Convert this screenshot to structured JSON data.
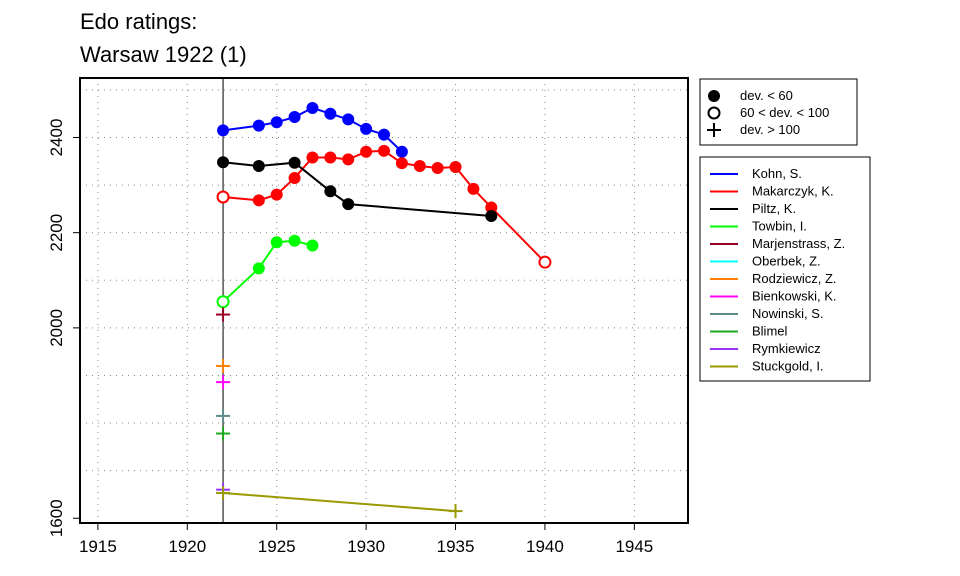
{
  "chart_data": {
    "type": "line",
    "title": "Edo ratings:",
    "subtitle": "Warsaw 1922 (1)",
    "xlabel": "",
    "ylabel": "",
    "xlim": [
      1914,
      1948
    ],
    "ylim": [
      1590,
      2525
    ],
    "xticks": [
      1915,
      1920,
      1925,
      1930,
      1935,
      1940,
      1945
    ],
    "yticks": [
      1600,
      2000,
      2200,
      2400
    ],
    "grid_x": [
      1915,
      1920,
      1925,
      1930,
      1935,
      1940,
      1945
    ],
    "grid_y": [
      1700,
      1800,
      1900,
      2000,
      2100,
      2200,
      2300,
      2400,
      2500
    ],
    "grid": true,
    "marker_line_year": 1922,
    "legend_placement": "right",
    "marker_legend": [
      {
        "symbol": "filled",
        "label": "dev. < 60"
      },
      {
        "symbol": "open",
        "label": "60 < dev. < 100"
      },
      {
        "symbol": "plus",
        "label": "dev. > 100"
      }
    ],
    "series": [
      {
        "name": "Kohn, S.",
        "color": "#0000ff",
        "points": [
          {
            "x": 1922,
            "y": 2415,
            "m": "filled"
          },
          {
            "x": 1924,
            "y": 2425,
            "m": "filled"
          },
          {
            "x": 1925,
            "y": 2432,
            "m": "filled"
          },
          {
            "x": 1926,
            "y": 2443,
            "m": "filled"
          },
          {
            "x": 1927,
            "y": 2462,
            "m": "filled"
          },
          {
            "x": 1928,
            "y": 2450,
            "m": "filled"
          },
          {
            "x": 1929,
            "y": 2438,
            "m": "filled"
          },
          {
            "x": 1930,
            "y": 2418,
            "m": "filled"
          },
          {
            "x": 1931,
            "y": 2406,
            "m": "filled"
          },
          {
            "x": 1932,
            "y": 2370,
            "m": "filled"
          }
        ]
      },
      {
        "name": "Makarczyk, K.",
        "color": "#ff0000",
        "points": [
          {
            "x": 1922,
            "y": 2275,
            "m": "open"
          },
          {
            "x": 1924,
            "y": 2268,
            "m": "filled"
          },
          {
            "x": 1925,
            "y": 2280,
            "m": "filled"
          },
          {
            "x": 1926,
            "y": 2315,
            "m": "filled"
          },
          {
            "x": 1927,
            "y": 2358,
            "m": "filled"
          },
          {
            "x": 1928,
            "y": 2358,
            "m": "filled"
          },
          {
            "x": 1929,
            "y": 2354,
            "m": "filled"
          },
          {
            "x": 1930,
            "y": 2370,
            "m": "filled"
          },
          {
            "x": 1931,
            "y": 2372,
            "m": "filled"
          },
          {
            "x": 1932,
            "y": 2346,
            "m": "filled"
          },
          {
            "x": 1933,
            "y": 2340,
            "m": "filled"
          },
          {
            "x": 1934,
            "y": 2336,
            "m": "filled"
          },
          {
            "x": 1935,
            "y": 2338,
            "m": "filled"
          },
          {
            "x": 1936,
            "y": 2292,
            "m": "filled"
          },
          {
            "x": 1937,
            "y": 2253,
            "m": "filled"
          },
          {
            "x": 1940,
            "y": 2138,
            "m": "open"
          }
        ]
      },
      {
        "name": "Piltz, K.",
        "color": "#000000",
        "points": [
          {
            "x": 1922,
            "y": 2348,
            "m": "filled"
          },
          {
            "x": 1924,
            "y": 2340,
            "m": "filled"
          },
          {
            "x": 1926,
            "y": 2347,
            "m": "filled"
          },
          {
            "x": 1928,
            "y": 2287,
            "m": "filled"
          },
          {
            "x": 1929,
            "y": 2260,
            "m": "filled"
          },
          {
            "x": 1937,
            "y": 2235,
            "m": "filled"
          }
        ]
      },
      {
        "name": "Towbin, I.",
        "color": "#00ff00",
        "points": [
          {
            "x": 1922,
            "y": 2055,
            "m": "open"
          },
          {
            "x": 1924,
            "y": 2125,
            "m": "filled"
          },
          {
            "x": 1925,
            "y": 2180,
            "m": "filled"
          },
          {
            "x": 1926,
            "y": 2183,
            "m": "filled"
          },
          {
            "x": 1927,
            "y": 2173,
            "m": "filled"
          }
        ]
      },
      {
        "name": "Marjenstrass, Z.",
        "color": "#990022",
        "points": [
          {
            "x": 1922,
            "y": 2028,
            "m": "plus"
          }
        ]
      },
      {
        "name": "Oberbek, Z.",
        "color": "#00ffff",
        "points": []
      },
      {
        "name": "Rodziewicz, Z.",
        "color": "#ff7f00",
        "points": [
          {
            "x": 1922,
            "y": 1920,
            "m": "plus"
          }
        ]
      },
      {
        "name": "Bienkowski, K.",
        "color": "#ff00ff",
        "points": [
          {
            "x": 1922,
            "y": 1886,
            "m": "plus"
          }
        ]
      },
      {
        "name": "Nowinski, S.",
        "color": "#5f8a8b",
        "points": [
          {
            "x": 1922,
            "y": 1815,
            "m": "plus"
          }
        ]
      },
      {
        "name": "Blimel",
        "color": "#1da81d",
        "points": [
          {
            "x": 1922,
            "y": 1778,
            "m": "plus"
          }
        ]
      },
      {
        "name": "Rymkiewicz",
        "color": "#9933ff",
        "points": [
          {
            "x": 1922,
            "y": 1660,
            "m": "plus"
          }
        ]
      },
      {
        "name": "Stuckgold, I.",
        "color": "#999900",
        "points": [
          {
            "x": 1922,
            "y": 1653,
            "m": "plus"
          },
          {
            "x": 1935,
            "y": 1615,
            "m": "plus"
          }
        ]
      }
    ]
  }
}
